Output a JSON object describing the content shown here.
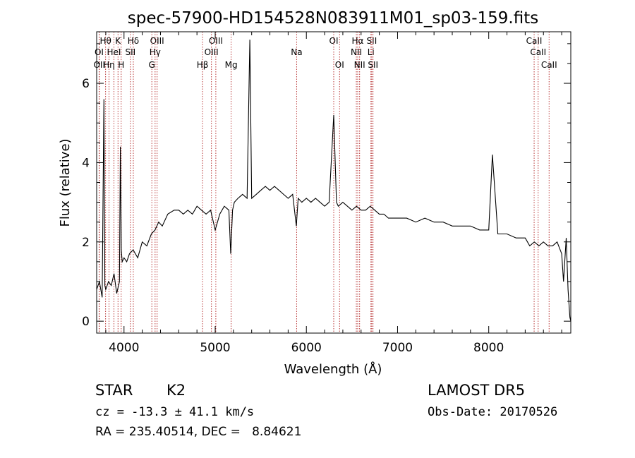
{
  "chart_data": {
    "type": "line",
    "title": "spec-57900-HD154528N083911M01_sp03-159.fits",
    "xlabel": "Wavelength (Å)",
    "ylabel": "Flux (relative)",
    "xlim": [
      3700,
      8900
    ],
    "ylim": [
      -0.3,
      7.3
    ],
    "xticks": [
      4000,
      5000,
      6000,
      7000,
      8000
    ],
    "yticks": [
      0,
      2,
      4,
      6
    ],
    "grid": false,
    "series": [
      {
        "x": [
          3700,
          3730,
          3760,
          3780,
          3790,
          3800,
          3830,
          3860,
          3890,
          3920,
          3950,
          3960,
          3970,
          3980,
          4000,
          4030,
          4060,
          4100,
          4150,
          4200,
          4250,
          4300,
          4340,
          4380,
          4420,
          4480,
          4550,
          4600,
          4650,
          4700,
          4750,
          4800,
          4850,
          4900,
          4950,
          5000,
          5050,
          5100,
          5150,
          5170,
          5190,
          5210,
          5250,
          5300,
          5350,
          5380,
          5400,
          5450,
          5500,
          5550,
          5600,
          5650,
          5700,
          5750,
          5800,
          5850,
          5890,
          5910,
          5950,
          6000,
          6050,
          6100,
          6150,
          6200,
          6250,
          6300,
          6330,
          6350,
          6400,
          6450,
          6500,
          6550,
          6600,
          6650,
          6700,
          6750,
          6800,
          6850,
          6900,
          6950,
          7000,
          7100,
          7200,
          7300,
          7400,
          7500,
          7600,
          7700,
          7800,
          7900,
          8000,
          8040,
          8100,
          8200,
          8300,
          8400,
          8450,
          8500,
          8550,
          8600,
          8650,
          8700,
          8750,
          8800,
          8820,
          8850,
          8870,
          8890,
          8900
        ],
        "y": [
          0.8,
          1.0,
          0.6,
          5.6,
          0.9,
          0.8,
          1.0,
          0.9,
          1.2,
          0.7,
          1.0,
          4.4,
          1.8,
          1.5,
          1.6,
          1.5,
          1.7,
          1.8,
          1.6,
          2.0,
          1.9,
          2.2,
          2.3,
          2.5,
          2.4,
          2.7,
          2.8,
          2.8,
          2.7,
          2.8,
          2.7,
          2.9,
          2.8,
          2.7,
          2.8,
          2.3,
          2.7,
          2.9,
          2.8,
          1.7,
          2.8,
          3.0,
          3.1,
          3.2,
          3.1,
          7.1,
          3.1,
          3.2,
          3.3,
          3.4,
          3.3,
          3.4,
          3.3,
          3.2,
          3.1,
          3.2,
          2.4,
          3.1,
          3.0,
          3.1,
          3.0,
          3.1,
          3.0,
          2.9,
          3.0,
          5.2,
          3.0,
          2.9,
          3.0,
          2.9,
          2.8,
          2.9,
          2.8,
          2.8,
          2.9,
          2.8,
          2.7,
          2.7,
          2.6,
          2.6,
          2.6,
          2.6,
          2.5,
          2.6,
          2.5,
          2.5,
          2.4,
          2.4,
          2.4,
          2.3,
          2.3,
          4.2,
          2.2,
          2.2,
          2.1,
          2.1,
          1.9,
          2.0,
          1.9,
          2.0,
          1.9,
          1.9,
          2.0,
          1.7,
          1.0,
          2.1,
          0.8,
          0.1,
          0.0
        ]
      }
    ],
    "line_markers": {
      "top": [
        {
          "label": "Hθ",
          "x": 3798
        },
        {
          "label": "K",
          "x": 3934
        },
        {
          "label": "Hδ",
          "x": 4102
        },
        {
          "label": "OIII",
          "x": 4363
        },
        {
          "label": "OIII",
          "x": 5007
        },
        {
          "label": "OI",
          "x": 6300
        },
        {
          "label": "Hα",
          "x": 6563
        },
        {
          "label": "SII",
          "x": 6717
        },
        {
          "label": "CaII",
          "x": 8498
        }
      ],
      "middle": [
        {
          "label": "OI",
          "x": 3727
        },
        {
          "label": "HeI",
          "x": 3889
        },
        {
          "label": "SII",
          "x": 4070
        },
        {
          "label": "Hγ",
          "x": 4341
        },
        {
          "label": "OIII",
          "x": 4959
        },
        {
          "label": "Na",
          "x": 5893
        },
        {
          "label": "NII",
          "x": 6548
        },
        {
          "label": "Li",
          "x": 6708
        },
        {
          "label": "CaII",
          "x": 8542
        }
      ],
      "bottom": [
        {
          "label": "OII",
          "x": 3729
        },
        {
          "label": "Hη",
          "x": 3835
        },
        {
          "label": "H",
          "x": 3969
        },
        {
          "label": "G",
          "x": 4305
        },
        {
          "label": "Hβ",
          "x": 4861
        },
        {
          "label": "Mg",
          "x": 5175
        },
        {
          "label": "OI",
          "x": 6364
        },
        {
          "label": "NII",
          "x": 6584
        },
        {
          "label": "SII",
          "x": 6731
        },
        {
          "label": "CaII",
          "x": 8662
        }
      ],
      "marker_color": "#b22222"
    }
  },
  "info": {
    "class": "STAR",
    "subclass": "K2",
    "survey": "LAMOST DR5",
    "cz": "cz = -13.3 ± 41.1 km/s",
    "obs_date": "Obs-Date: 20170526",
    "coords": "RA = 235.40514, DEC =   8.84621"
  }
}
